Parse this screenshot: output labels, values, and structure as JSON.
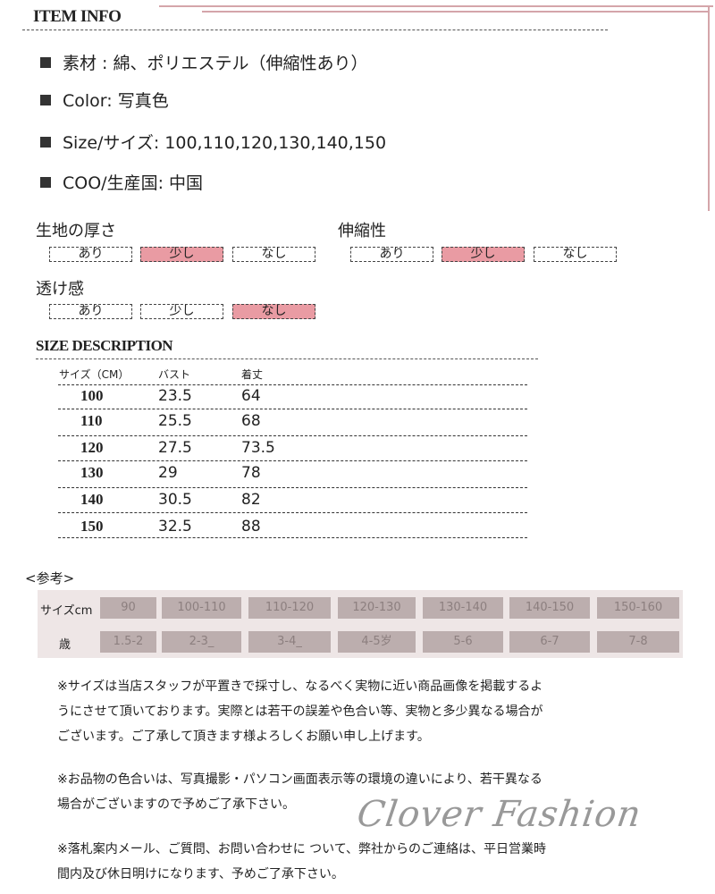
{
  "item_info": {
    "title": "ITEM INFO",
    "items": [
      "素材 : 綿、ポリエステル（伸縮性あり）",
      "Color: 写真色",
      "Size/サイズ: 100,110,120,130,140,150",
      "COO/生産国: 中国"
    ]
  },
  "attributes": [
    {
      "label": "生地の厚さ",
      "options": [
        "あり",
        "少し",
        "なし"
      ],
      "selected": "少し"
    },
    {
      "label": "伸縮性",
      "options": [
        "あり",
        "少し",
        "なし"
      ],
      "selected": "少し"
    },
    {
      "label": "透け感",
      "options": [
        "あり",
        "少し",
        "なし"
      ],
      "selected": "なし"
    }
  ],
  "highlight_color": "#e99ba3",
  "size_description": {
    "title": "SIZE DESCRIPTION",
    "headers": [
      "サイズ（CM）",
      "バスト",
      "着丈"
    ],
    "rows": [
      [
        "100",
        "23.5",
        "64"
      ],
      [
        "110",
        "25.5",
        "68"
      ],
      [
        "120",
        "27.5",
        "73.5"
      ],
      [
        "130",
        "29",
        "78"
      ],
      [
        "140",
        "30.5",
        "82"
      ],
      [
        "150",
        "32.5",
        "88"
      ]
    ]
  },
  "reference": {
    "title": "<参考>",
    "size_label": "サイズcm",
    "age_label": "歳",
    "sizes": [
      "90",
      "100-110",
      "110-120",
      "120-130",
      "130-140",
      "140-150",
      "150-160"
    ],
    "ages": [
      "1.5-2",
      "2-3_",
      "3-4_",
      "4-5岁",
      "5-6",
      "6-7",
      "7-8"
    ]
  },
  "notes": [
    [
      "※サイズは当店スタッフが平置きで採寸し、なるべく実物に近い商品画像を掲載するよ",
      "うにさせて頂いております。実際とは若干の誤差や色合い等、実物と多少異なる場合が",
      "ございます。ご了承して頂きます様よろしくお願い申し上げます。"
    ],
    [
      "※お品物の色合いは、写真撮影・パソコン画面表示等の環境の違いにより、若干異なる",
      "場合がございますので予めご了承下さい。"
    ],
    [
      "※落札案内メール、ご質問、お問い合わせに ついて、弊社からのご連絡は、平日営業時",
      "間内及び休日明けになります、予めご了承下さい。"
    ]
  ],
  "watermark": "Clover Fashion"
}
